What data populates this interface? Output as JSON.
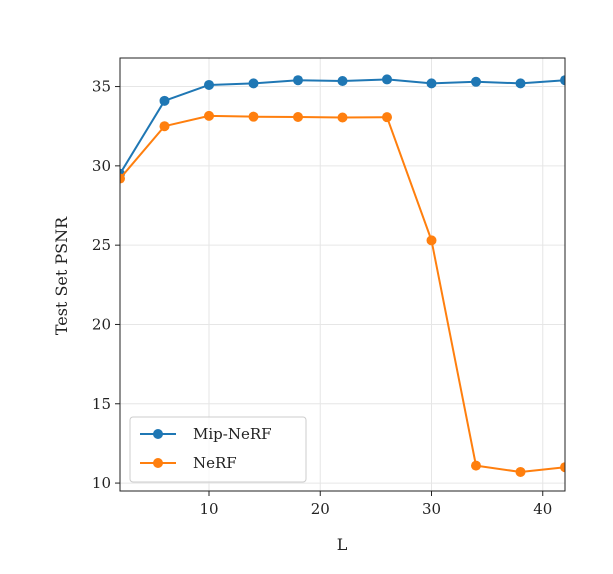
{
  "chart_data": {
    "type": "line",
    "title": "",
    "xlabel": "L",
    "ylabel": "Test Set PSNR",
    "xlim": [
      2,
      42
    ],
    "ylim": [
      9.5,
      36.8
    ],
    "xticks": [
      10,
      20,
      30,
      40
    ],
    "yticks": [
      10,
      15,
      20,
      25,
      30,
      35
    ],
    "grid": true,
    "legend_position": "lower-left",
    "x": [
      2,
      6,
      10,
      14,
      18,
      22,
      26,
      30,
      34,
      38,
      42
    ],
    "series": [
      {
        "name": "Mip-NeRF",
        "color": "#1f77b4",
        "values": [
          29.5,
          34.1,
          35.1,
          35.2,
          35.4,
          35.35,
          35.45,
          35.2,
          35.3,
          35.2,
          35.4
        ]
      },
      {
        "name": "NeRF",
        "color": "#ff7f0e",
        "values": [
          29.2,
          32.5,
          33.15,
          33.1,
          33.08,
          33.05,
          33.07,
          25.3,
          11.1,
          10.7,
          11.0
        ]
      }
    ]
  }
}
